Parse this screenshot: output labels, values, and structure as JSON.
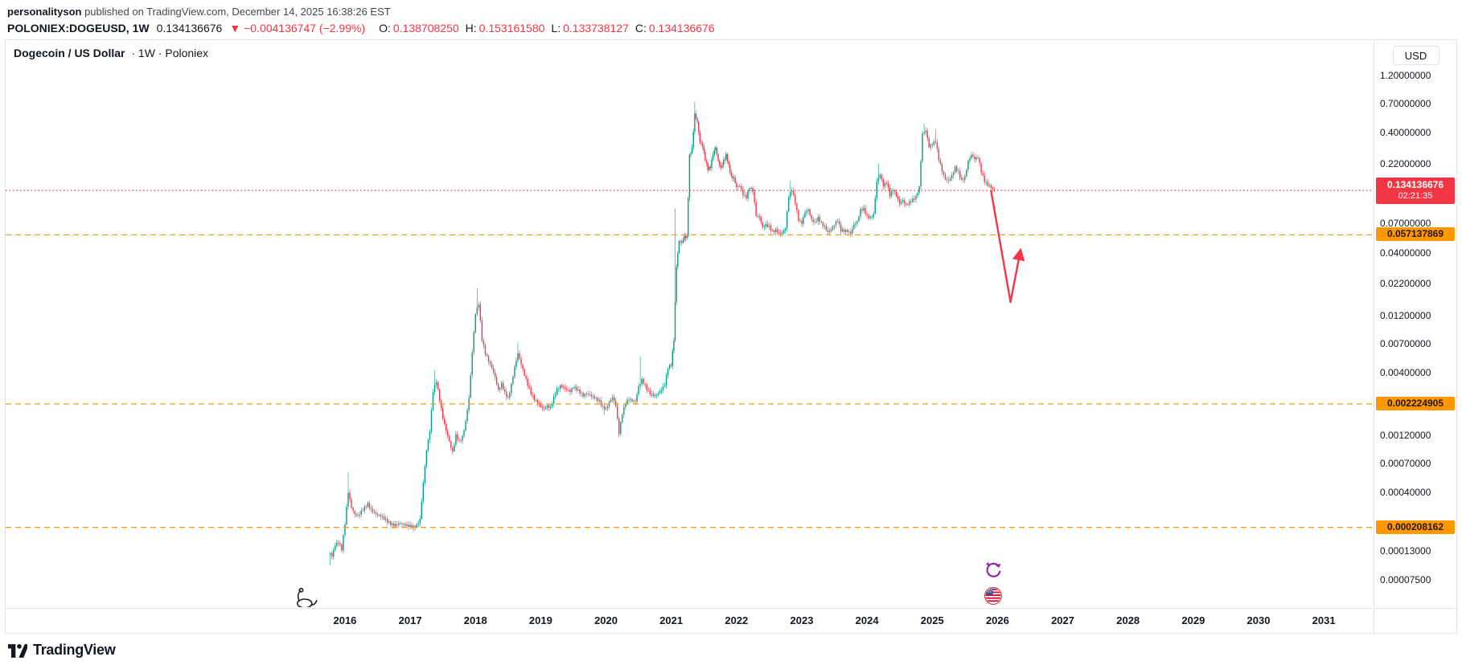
{
  "attribution": {
    "author": "personalityson",
    "rest": " published on TradingView.com, December 14, 2025 16:38:26 EST"
  },
  "symbol_bar": {
    "symbol": "POLONIEX:DOGEUSD, 1W",
    "last_price": "0.134136676",
    "change": "▼ −0.004136747 (−2.99%)",
    "ohlc": [
      {
        "label": "O:",
        "value": "0.138708250"
      },
      {
        "label": "H:",
        "value": "0.153161580"
      },
      {
        "label": "L:",
        "value": "0.133738127"
      },
      {
        "label": "C:",
        "value": "0.134136676"
      }
    ]
  },
  "chart_header": {
    "title": "Dogecoin / US Dollar",
    "suffix": "· 1W · Poloniex",
    "currency_button": "USD"
  },
  "price_axis": {
    "ticks": [
      {
        "text": "1.20000000",
        "value": 1.2
      },
      {
        "text": "0.70000000",
        "value": 0.7
      },
      {
        "text": "0.40000000",
        "value": 0.4
      },
      {
        "text": "0.22000000",
        "value": 0.22
      },
      {
        "text": "0.07000000",
        "value": 0.07
      },
      {
        "text": "0.04000000",
        "value": 0.04
      },
      {
        "text": "0.02200000",
        "value": 0.022
      },
      {
        "text": "0.01200000",
        "value": 0.012
      },
      {
        "text": "0.00700000",
        "value": 0.007
      },
      {
        "text": "0.00400000",
        "value": 0.004
      },
      {
        "text": "0.00120000",
        "value": 0.0012
      },
      {
        "text": "0.00070000",
        "value": 0.0007
      },
      {
        "text": "0.00040000",
        "value": 0.0004
      },
      {
        "text": "0.00013000",
        "value": 0.00013
      },
      {
        "text": "0.00007500",
        "value": 7.5e-05
      }
    ],
    "current_price_label": {
      "price": "0.134136676",
      "countdown": "02:21:35",
      "color": "#f23645"
    },
    "level_labels": [
      {
        "text": "0.057137869",
        "value": 0.057137869
      },
      {
        "text": "0.002224905",
        "value": 0.002224905
      },
      {
        "text": "0.000208162",
        "value": 0.000208162
      }
    ]
  },
  "time_axis": {
    "years": [
      2016,
      2017,
      2018,
      2019,
      2020,
      2021,
      2022,
      2023,
      2024,
      2025,
      2026,
      2027,
      2028,
      2029,
      2030,
      2031
    ]
  },
  "footer": {
    "brand": "TradingView"
  },
  "stickers": [
    {
      "name": "dinosaur",
      "t": 2015.3,
      "price": 5.5e-05
    },
    {
      "name": "cycle-arrows",
      "t": 2025.94,
      "price": 9e-05
    },
    {
      "name": "us-flag",
      "t": 2025.94,
      "price": 5.5e-05
    }
  ],
  "chart_data": {
    "type": "candlestick",
    "title": "Dogecoin / US Dollar · 1W · Poloniex",
    "symbol": "POLONIEX:DOGEUSD",
    "timeframe": "1W",
    "scale": "log",
    "grid": false,
    "x_domain": [
      2010.8,
      2031.75
    ],
    "y_domain": [
      4.5e-05,
      2.4
    ],
    "up_color": "#089981",
    "down_color": "#f23645",
    "closes": [
      [
        2015.75,
        0.000135
      ],
      [
        2015.8,
        0.00012
      ],
      [
        2015.85,
        0.00015
      ],
      [
        2015.9,
        0.00016
      ],
      [
        2015.95,
        0.00014
      ],
      [
        2016,
        0.00023
      ],
      [
        2016.05,
        0.00042
      ],
      [
        2016.1,
        0.00031
      ],
      [
        2016.15,
        0.00027
      ],
      [
        2016.2,
        0.00026
      ],
      [
        2016.25,
        0.00028
      ],
      [
        2016.3,
        0.0003
      ],
      [
        2016.35,
        0.00032
      ],
      [
        2016.4,
        0.000285
      ],
      [
        2016.45,
        0.00027
      ],
      [
        2016.5,
        0.00026
      ],
      [
        2016.55,
        0.000255
      ],
      [
        2016.6,
        0.000245
      ],
      [
        2016.65,
        0.000235
      ],
      [
        2016.7,
        0.000225
      ],
      [
        2016.75,
        0.00022
      ],
      [
        2016.8,
        0.000225
      ],
      [
        2016.85,
        0.00023
      ],
      [
        2016.9,
        0.000225
      ],
      [
        2016.95,
        0.00022
      ],
      [
        2017,
        0.000215
      ],
      [
        2017.05,
        0.00021
      ],
      [
        2017.1,
        0.000215
      ],
      [
        2017.15,
        0.00024
      ],
      [
        2017.2,
        0.00048
      ],
      [
        2017.25,
        0.0009
      ],
      [
        2017.3,
        0.0013
      ],
      [
        2017.35,
        0.0028
      ],
      [
        2017.4,
        0.0034
      ],
      [
        2017.45,
        0.0024
      ],
      [
        2017.5,
        0.0017
      ],
      [
        2017.55,
        0.00135
      ],
      [
        2017.6,
        0.0011
      ],
      [
        2017.65,
        0.0009
      ],
      [
        2017.7,
        0.00125
      ],
      [
        2017.75,
        0.0011
      ],
      [
        2017.8,
        0.0012
      ],
      [
        2017.85,
        0.0016
      ],
      [
        2017.9,
        0.0025
      ],
      [
        2017.95,
        0.006
      ],
      [
        2018,
        0.0125
      ],
      [
        2018.05,
        0.015
      ],
      [
        2018.1,
        0.0075
      ],
      [
        2018.15,
        0.0058
      ],
      [
        2018.2,
        0.005
      ],
      [
        2018.25,
        0.0044
      ],
      [
        2018.3,
        0.0037
      ],
      [
        2018.35,
        0.0029
      ],
      [
        2018.4,
        0.0033
      ],
      [
        2018.45,
        0.0028
      ],
      [
        2018.5,
        0.0025
      ],
      [
        2018.55,
        0.0033
      ],
      [
        2018.6,
        0.0046
      ],
      [
        2018.65,
        0.006
      ],
      [
        2018.7,
        0.0048
      ],
      [
        2018.75,
        0.0039
      ],
      [
        2018.8,
        0.0032
      ],
      [
        2018.85,
        0.0027
      ],
      [
        2018.9,
        0.0024
      ],
      [
        2018.95,
        0.00225
      ],
      [
        2019,
        0.00205
      ],
      [
        2019.05,
        0.002
      ],
      [
        2019.1,
        0.0021
      ],
      [
        2019.15,
        0.00205
      ],
      [
        2019.2,
        0.0025
      ],
      [
        2019.25,
        0.00295
      ],
      [
        2019.3,
        0.0032
      ],
      [
        2019.35,
        0.0031
      ],
      [
        2019.4,
        0.003
      ],
      [
        2019.45,
        0.0029
      ],
      [
        2019.5,
        0.00315
      ],
      [
        2019.55,
        0.003
      ],
      [
        2019.6,
        0.0028
      ],
      [
        2019.65,
        0.0026
      ],
      [
        2019.7,
        0.0027
      ],
      [
        2019.75,
        0.0026
      ],
      [
        2019.8,
        0.0025
      ],
      [
        2019.85,
        0.0024
      ],
      [
        2019.9,
        0.0023
      ],
      [
        2019.95,
        0.00205
      ],
      [
        2020,
        0.002
      ],
      [
        2020.05,
        0.0023
      ],
      [
        2020.1,
        0.00255
      ],
      [
        2020.15,
        0.0022
      ],
      [
        2020.2,
        0.0013
      ],
      [
        2020.25,
        0.0019
      ],
      [
        2020.3,
        0.0023
      ],
      [
        2020.35,
        0.0025
      ],
      [
        2020.4,
        0.0024
      ],
      [
        2020.45,
        0.00235
      ],
      [
        2020.5,
        0.0031
      ],
      [
        2020.55,
        0.0035
      ],
      [
        2020.6,
        0.0031
      ],
      [
        2020.65,
        0.00275
      ],
      [
        2020.7,
        0.0026
      ],
      [
        2020.75,
        0.00255
      ],
      [
        2020.8,
        0.0027
      ],
      [
        2020.85,
        0.0029
      ],
      [
        2020.9,
        0.0032
      ],
      [
        2020.95,
        0.0045
      ],
      [
        2021,
        0.0048
      ],
      [
        2021.04,
        0.0078
      ],
      [
        2021.08,
        0.032
      ],
      [
        2021.12,
        0.052
      ],
      [
        2021.16,
        0.05
      ],
      [
        2021.2,
        0.056
      ],
      [
        2021.24,
        0.055
      ],
      [
        2021.28,
        0.26
      ],
      [
        2021.32,
        0.3
      ],
      [
        2021.36,
        0.57
      ],
      [
        2021.4,
        0.49
      ],
      [
        2021.44,
        0.33
      ],
      [
        2021.48,
        0.31
      ],
      [
        2021.52,
        0.24
      ],
      [
        2021.56,
        0.2
      ],
      [
        2021.6,
        0.21
      ],
      [
        2021.64,
        0.27
      ],
      [
        2021.68,
        0.31
      ],
      [
        2021.72,
        0.24
      ],
      [
        2021.76,
        0.21
      ],
      [
        2021.8,
        0.24
      ],
      [
        2021.84,
        0.27
      ],
      [
        2021.88,
        0.22
      ],
      [
        2021.92,
        0.175
      ],
      [
        2021.96,
        0.17
      ],
      [
        2022,
        0.142
      ],
      [
        2022.05,
        0.145
      ],
      [
        2022.1,
        0.122
      ],
      [
        2022.15,
        0.115
      ],
      [
        2022.2,
        0.14
      ],
      [
        2022.25,
        0.13
      ],
      [
        2022.3,
        0.082
      ],
      [
        2022.35,
        0.08
      ],
      [
        2022.4,
        0.066
      ],
      [
        2022.45,
        0.07
      ],
      [
        2022.5,
        0.068
      ],
      [
        2022.55,
        0.062
      ],
      [
        2022.6,
        0.064
      ],
      [
        2022.65,
        0.06
      ],
      [
        2022.7,
        0.06
      ],
      [
        2022.75,
        0.066
      ],
      [
        2022.8,
        0.12
      ],
      [
        2022.85,
        0.135
      ],
      [
        2022.9,
        0.105
      ],
      [
        2022.95,
        0.075
      ],
      [
        2023,
        0.07
      ],
      [
        2023.05,
        0.086
      ],
      [
        2023.1,
        0.091
      ],
      [
        2023.15,
        0.075
      ],
      [
        2023.2,
        0.072
      ],
      [
        2023.25,
        0.079
      ],
      [
        2023.3,
        0.072
      ],
      [
        2023.35,
        0.068
      ],
      [
        2023.4,
        0.061
      ],
      [
        2023.45,
        0.065
      ],
      [
        2023.5,
        0.071
      ],
      [
        2023.55,
        0.077
      ],
      [
        2023.6,
        0.063
      ],
      [
        2023.65,
        0.062
      ],
      [
        2023.7,
        0.061
      ],
      [
        2023.75,
        0.058
      ],
      [
        2023.8,
        0.068
      ],
      [
        2023.85,
        0.072
      ],
      [
        2023.9,
        0.09
      ],
      [
        2023.95,
        0.092
      ],
      [
        2024,
        0.08
      ],
      [
        2024.05,
        0.079
      ],
      [
        2024.1,
        0.085
      ],
      [
        2024.15,
        0.16
      ],
      [
        2024.2,
        0.185
      ],
      [
        2024.25,
        0.15
      ],
      [
        2024.3,
        0.16
      ],
      [
        2024.35,
        0.125
      ],
      [
        2024.4,
        0.14
      ],
      [
        2024.45,
        0.122
      ],
      [
        2024.5,
        0.105
      ],
      [
        2024.55,
        0.11
      ],
      [
        2024.6,
        0.1
      ],
      [
        2024.65,
        0.105
      ],
      [
        2024.7,
        0.11
      ],
      [
        2024.75,
        0.115
      ],
      [
        2024.8,
        0.14
      ],
      [
        2024.85,
        0.39
      ],
      [
        2024.9,
        0.42
      ],
      [
        2024.95,
        0.31
      ],
      [
        2025,
        0.33
      ],
      [
        2025.05,
        0.35
      ],
      [
        2025.1,
        0.25
      ],
      [
        2025.15,
        0.2
      ],
      [
        2025.2,
        0.17
      ],
      [
        2025.25,
        0.165
      ],
      [
        2025.3,
        0.18
      ],
      [
        2025.35,
        0.21
      ],
      [
        2025.4,
        0.19
      ],
      [
        2025.45,
        0.16
      ],
      [
        2025.5,
        0.17
      ],
      [
        2025.55,
        0.23
      ],
      [
        2025.6,
        0.26
      ],
      [
        2025.65,
        0.24
      ],
      [
        2025.7,
        0.25
      ],
      [
        2025.75,
        0.19
      ],
      [
        2025.8,
        0.16
      ],
      [
        2025.85,
        0.15
      ],
      [
        2025.9,
        0.145
      ],
      [
        2025.95,
        0.134136676
      ]
    ],
    "spike_highs": [
      [
        2016.06,
        0.0006
      ],
      [
        2017.38,
        0.0042
      ],
      [
        2018.02,
        0.0205
      ],
      [
        2018.66,
        0.0072
      ],
      [
        2020.53,
        0.0055
      ],
      [
        2021.07,
        0.095
      ],
      [
        2021.37,
        0.74
      ],
      [
        2022.82,
        0.16
      ],
      [
        2024.17,
        0.225
      ],
      [
        2024.88,
        0.48
      ],
      [
        2025.06,
        0.43
      ]
    ],
    "spike_lows": [
      [
        2015.78,
        0.0001
      ],
      [
        2019.98,
        0.0018
      ],
      [
        2020.21,
        0.0012
      ]
    ],
    "levels": [
      {
        "value": 0.134136676,
        "color": "#f23645",
        "style": "dotted",
        "label": "0.134136676"
      },
      {
        "value": 0.057137869,
        "color": "#ff9800",
        "style": "dashed",
        "label": "0.057137869"
      },
      {
        "value": 0.002224905,
        "color": "#ff9800",
        "style": "dashed",
        "label": "0.002224905"
      },
      {
        "value": 0.000208162,
        "color": "#ff9800",
        "style": "dashed",
        "label": "0.000208162"
      }
    ],
    "arrow": {
      "points": [
        [
          2025.9,
          0.134
        ],
        [
          2026.2,
          0.0157
        ],
        [
          2026.35,
          0.042
        ]
      ],
      "color": "#f23645"
    }
  }
}
